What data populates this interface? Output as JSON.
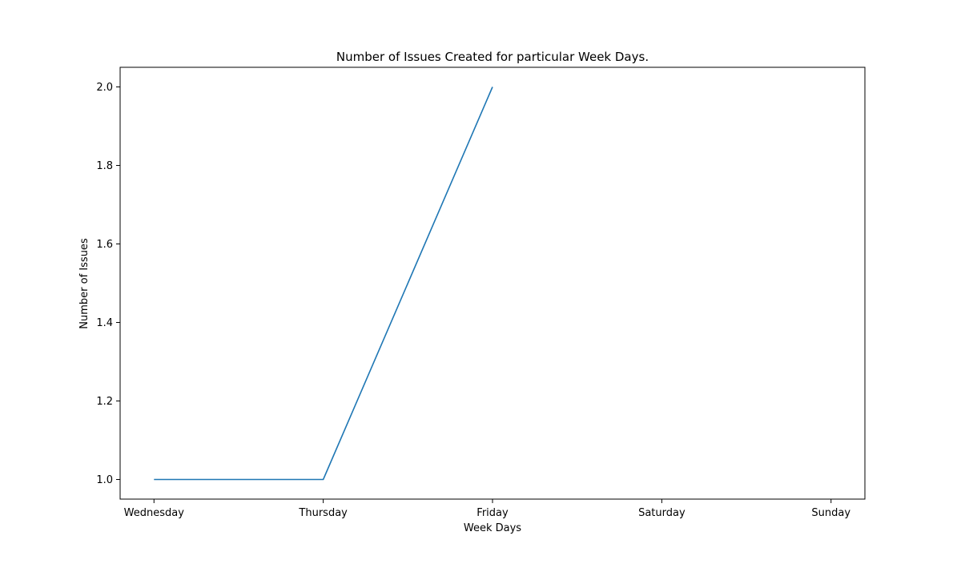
{
  "chart_data": {
    "type": "line",
    "title": "Number of Issues Created for particular Week Days.",
    "xlabel": "Week Days",
    "ylabel": "Number of Issues",
    "categories": [
      "Wednesday",
      "Thursday",
      "Friday",
      "Saturday",
      "Sunday"
    ],
    "series": [
      {
        "values": [
          1,
          1,
          2,
          null,
          null
        ],
        "color": "#1f77b4"
      }
    ],
    "ylim": [
      0.95,
      2.05
    ],
    "yticks": [
      1.0,
      1.2,
      1.4,
      1.6,
      1.8,
      2.0
    ],
    "ytick_labels": [
      "1.0",
      "1.2",
      "1.4",
      "1.6",
      "1.8",
      "2.0"
    ],
    "grid": false,
    "legend": "none"
  }
}
